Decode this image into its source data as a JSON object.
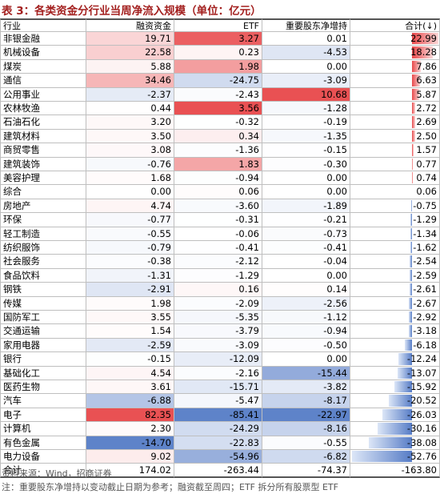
{
  "header": {
    "title": "表 3：各类资金分行业当周净流入规模（单位：亿元）"
  },
  "table": {
    "columns": [
      "行业",
      "融资资金",
      "ETF",
      "重要股东净增持",
      "合计(↓)"
    ],
    "rows": [
      [
        "非银金融",
        "19.71",
        "3.27",
        "0.01",
        "22.99"
      ],
      [
        "机械设备",
        "22.58",
        "0.23",
        "-4.53",
        "18.28"
      ],
      [
        "煤炭",
        "5.88",
        "1.98",
        "0.00",
        "7.86"
      ],
      [
        "通信",
        "34.46",
        "-24.75",
        "-3.09",
        "6.63"
      ],
      [
        "公用事业",
        "-2.37",
        "-2.43",
        "10.68",
        "5.87"
      ],
      [
        "农林牧渔",
        "0.44",
        "3.56",
        "-1.28",
        "2.72"
      ],
      [
        "石油石化",
        "3.20",
        "-0.32",
        "-0.19",
        "2.69"
      ],
      [
        "建筑材料",
        "3.50",
        "0.34",
        "-1.35",
        "2.50"
      ],
      [
        "商贸零售",
        "3.08",
        "-1.36",
        "-0.15",
        "1.57"
      ],
      [
        "建筑装饰",
        "-0.76",
        "1.83",
        "-0.30",
        "0.77"
      ],
      [
        "美容护理",
        "1.68",
        "-0.94",
        "0.00",
        "0.74"
      ],
      [
        "综合",
        "0.00",
        "0.06",
        "0.00",
        "0.06"
      ],
      [
        "房地产",
        "4.74",
        "-3.60",
        "-1.89",
        "-0.75"
      ],
      [
        "环保",
        "-0.77",
        "-0.31",
        "-0.21",
        "-1.29"
      ],
      [
        "轻工制造",
        "-0.55",
        "-0.06",
        "-0.73",
        "-1.34"
      ],
      [
        "纺织服饰",
        "-0.79",
        "-0.41",
        "-0.41",
        "-1.62"
      ],
      [
        "社会服务",
        "-0.38",
        "-2.12",
        "-0.04",
        "-2.54"
      ],
      [
        "食品饮料",
        "-1.31",
        "-1.29",
        "0.00",
        "-2.59"
      ],
      [
        "钢铁",
        "-2.91",
        "0.16",
        "0.14",
        "-2.61"
      ],
      [
        "传媒",
        "1.98",
        "-2.09",
        "-2.56",
        "-2.67"
      ],
      [
        "国防军工",
        "3.55",
        "-5.35",
        "-1.12",
        "-2.92"
      ],
      [
        "交通运输",
        "1.54",
        "-3.79",
        "-0.94",
        "-3.18"
      ],
      [
        "家用电器",
        "-2.59",
        "-3.09",
        "-0.50",
        "-6.18"
      ],
      [
        "银行",
        "-0.15",
        "-12.09",
        "0.00",
        "-12.24"
      ],
      [
        "基础化工",
        "4.54",
        "-2.16",
        "-15.44",
        "-13.07"
      ],
      [
        "医药生物",
        "3.61",
        "-15.71",
        "-3.82",
        "-15.92"
      ],
      [
        "汽车",
        "-6.88",
        "-5.47",
        "-8.17",
        "-20.52"
      ],
      [
        "电子",
        "82.35",
        "-85.41",
        "-22.97",
        "-26.03"
      ],
      [
        "计算机",
        "2.30",
        "-24.29",
        "-8.16",
        "-30.16"
      ],
      [
        "有色金属",
        "-14.70",
        "-22.83",
        "-0.55",
        "-38.08"
      ],
      [
        "电力设备",
        "9.02",
        "-54.96",
        "-6.82",
        "-52.76"
      ]
    ],
    "total": [
      "合计",
      "174.02",
      "-263.44",
      "-74.37",
      "-163.80"
    ]
  },
  "footer": {
    "source": "资料来源：Wind，招商证券",
    "note": "注：重要股东净增持以变动截止日期为参考；融资截至周四；ETF 拆分所有股票型 ETF"
  }
}
